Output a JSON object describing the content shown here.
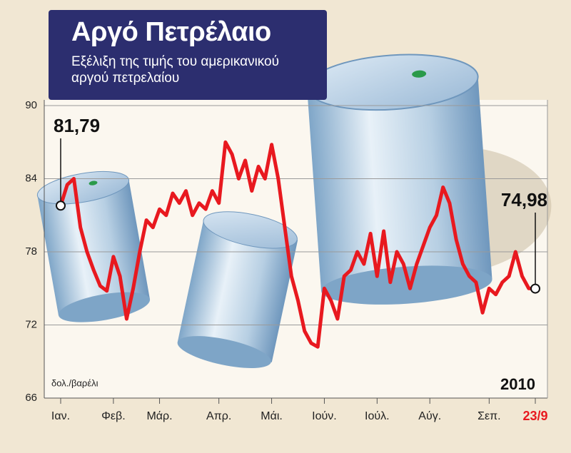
{
  "chart_data": {
    "type": "line",
    "title": "Αργό Πετρέλαιο",
    "subtitle": "Εξέλιξη της τιμής του αμερικανικού αργού πετρελαίου",
    "unit": "δολ./βαρέλι",
    "year": "2010",
    "categories": [
      "Ιαν.",
      null,
      null,
      null,
      null,
      null,
      null,
      null,
      "Φεβ.",
      null,
      null,
      null,
      null,
      null,
      null,
      "Μάρ.",
      null,
      null,
      null,
      null,
      null,
      null,
      null,
      null,
      "Απρ.",
      null,
      null,
      null,
      null,
      null,
      null,
      null,
      "Μάι.",
      null,
      null,
      null,
      null,
      null,
      null,
      null,
      "Ιούν.",
      null,
      null,
      null,
      null,
      null,
      null,
      null,
      "Ιούλ.",
      null,
      null,
      null,
      null,
      null,
      null,
      null,
      "Αύγ.",
      null,
      null,
      null,
      null,
      null,
      null,
      null,
      null,
      "Σεπ.",
      null,
      null,
      null,
      null,
      null,
      null,
      "23/9"
    ],
    "highlight_color": "#e8191f",
    "values": [
      81.79,
      83.5,
      84,
      80,
      78,
      76.5,
      75.2,
      74.8,
      77.6,
      76,
      72.5,
      75,
      78,
      80.6,
      80,
      81.5,
      81,
      82.8,
      82,
      83,
      81,
      82,
      81.5,
      83,
      82,
      87,
      86,
      84,
      85.5,
      83,
      85,
      84,
      86.8,
      84,
      80,
      76,
      74,
      71.5,
      70.5,
      70.2,
      75,
      74,
      72.5,
      76,
      76.5,
      78,
      77,
      79.5,
      76,
      79.7,
      75.5,
      78,
      77,
      75,
      77,
      78.5,
      80,
      81,
      83.3,
      82,
      79,
      77,
      76,
      75.5,
      73,
      75,
      74.5,
      75.5,
      76,
      78,
      76,
      75,
      74.98
    ],
    "value_labels": [
      "81,79",
      null,
      null,
      null,
      null,
      null,
      null,
      null,
      null,
      null,
      null,
      null,
      null,
      null,
      null,
      null,
      null,
      null,
      null,
      null,
      null,
      null,
      null,
      null,
      null,
      null,
      null,
      null,
      null,
      null,
      null,
      null,
      null,
      null,
      null,
      null,
      null,
      null,
      null,
      null,
      null,
      null,
      null,
      null,
      null,
      null,
      null,
      null,
      null,
      null,
      null,
      null,
      null,
      null,
      null,
      null,
      null,
      null,
      null,
      null,
      null,
      null,
      null,
      null,
      null,
      null,
      null,
      null,
      null,
      null,
      null,
      null,
      "74,98"
    ],
    "color": "#e8191f",
    "ylim": [
      66,
      90
    ],
    "yticks": [
      66,
      72,
      78,
      84,
      90
    ],
    "grid": true
  }
}
